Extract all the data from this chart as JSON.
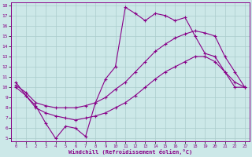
{
  "xlabel": "Windchill (Refroidissement éolien,°C)",
  "background_color": "#cce8e8",
  "grid_color": "#aacccc",
  "line_color": "#880088",
  "xlim": [
    -0.5,
    23.5
  ],
  "ylim": [
    4.7,
    18.3
  ],
  "xticks": [
    0,
    1,
    2,
    3,
    4,
    5,
    6,
    7,
    8,
    9,
    10,
    11,
    12,
    13,
    14,
    15,
    16,
    17,
    18,
    19,
    20,
    21,
    22,
    23
  ],
  "yticks": [
    5,
    6,
    7,
    8,
    9,
    10,
    11,
    12,
    13,
    14,
    15,
    16,
    17,
    18
  ],
  "line1_x": [
    0,
    1,
    2,
    3,
    4,
    5,
    6,
    7,
    8,
    9,
    10,
    11,
    12,
    13,
    14,
    15,
    16,
    17,
    18,
    19,
    20,
    21,
    22,
    23
  ],
  "line1_y": [
    10.5,
    9.2,
    8.2,
    6.5,
    5.0,
    6.2,
    6.0,
    5.2,
    8.5,
    10.8,
    12.0,
    17.8,
    17.2,
    16.5,
    17.2,
    17.0,
    16.5,
    16.8,
    15.0,
    13.3,
    13.0,
    11.5,
    10.0,
    10.0
  ],
  "line2_x": [
    0,
    1,
    2,
    3,
    4,
    5,
    6,
    7,
    8,
    9,
    10,
    11,
    12,
    13,
    14,
    15,
    16,
    17,
    18,
    19,
    20,
    21,
    22,
    23
  ],
  "line2_y": [
    10.2,
    9.5,
    8.5,
    8.2,
    8.0,
    8.0,
    8.0,
    8.2,
    8.5,
    9.0,
    9.8,
    10.5,
    11.5,
    12.5,
    13.5,
    14.2,
    14.8,
    15.2,
    15.5,
    15.3,
    15.0,
    13.0,
    11.5,
    10.0
  ],
  "line3_x": [
    0,
    1,
    2,
    3,
    4,
    5,
    6,
    7,
    8,
    9,
    10,
    11,
    12,
    13,
    14,
    15,
    16,
    17,
    18,
    19,
    20,
    21,
    22,
    23
  ],
  "line3_y": [
    10.0,
    9.2,
    8.0,
    7.5,
    7.2,
    7.0,
    6.8,
    7.0,
    7.2,
    7.5,
    8.0,
    8.5,
    9.2,
    10.0,
    10.8,
    11.5,
    12.0,
    12.5,
    13.0,
    13.0,
    12.5,
    11.5,
    10.5,
    10.0
  ]
}
